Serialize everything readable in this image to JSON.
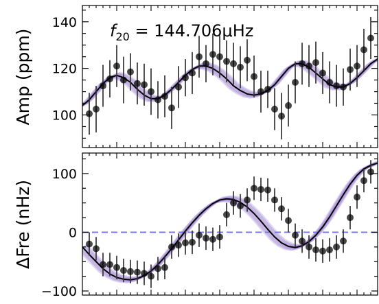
{
  "chart_data": [
    {
      "type": "scatter",
      "ylabel": "Amp (ppm)",
      "annotation": {
        "prefix": "f",
        "subscript": "20",
        "text": " = 144.706μHz"
      },
      "xlim": [
        0,
        43
      ],
      "ylim": [
        86,
        147
      ],
      "yticks": [
        100,
        120,
        140
      ],
      "colors": {
        "points": "#000000",
        "model": "#000000",
        "band": "#9b7fd0"
      },
      "points": {
        "x": [
          1,
          2,
          3,
          4,
          5,
          6,
          7,
          8,
          9,
          10,
          11,
          12,
          13,
          14,
          15,
          16,
          17,
          18,
          19,
          20,
          21,
          22,
          23,
          24,
          25,
          26,
          27,
          28,
          29,
          30,
          31,
          32,
          33,
          34,
          35,
          36,
          37,
          38,
          39,
          40,
          41,
          42
        ],
        "y": [
          100.5,
          102.5,
          112.5,
          115.5,
          121,
          115,
          118.5,
          113.5,
          113,
          110,
          106.5,
          108,
          103,
          112,
          116,
          118,
          125,
          122,
          126,
          125,
          123,
          122,
          120.5,
          123.5,
          116.5,
          110,
          111,
          102.5,
          99.5,
          104,
          114,
          122,
          121,
          122.5,
          118,
          114,
          112.5,
          112,
          119.5,
          121,
          128,
          133
        ],
        "err": [
          9,
          10,
          9,
          8,
          9,
          10,
          8,
          9,
          9,
          10,
          8,
          9,
          9,
          9,
          8,
          9,
          9,
          8,
          9,
          9,
          9,
          9,
          9,
          9,
          9,
          9,
          8,
          9,
          10,
          9,
          9,
          9,
          9,
          9,
          9,
          9,
          9,
          8,
          9,
          9,
          9,
          9
        ]
      },
      "model": {
        "x": [
          0,
          1,
          2,
          3,
          4,
          5,
          6,
          7,
          8,
          9,
          10,
          11,
          12,
          13,
          14,
          15,
          16,
          17,
          18,
          19,
          20,
          21,
          22,
          23,
          24,
          25,
          26,
          27,
          28,
          29,
          30,
          31,
          32,
          33,
          34,
          35,
          36,
          37,
          38,
          39,
          40,
          41,
          42,
          43
        ],
        "y": [
          104,
          106.5,
          110,
          113.5,
          116,
          117,
          116,
          114,
          111,
          108.5,
          107,
          107,
          108.5,
          111,
          114,
          117,
          119.5,
          121,
          121,
          120,
          118,
          115.5,
          112.5,
          110.5,
          109,
          108.5,
          109,
          110.5,
          113,
          116.5,
          120,
          122,
          122,
          120.5,
          118,
          115.5,
          113,
          112,
          112,
          113.5,
          116,
          119,
          122,
          124
        ]
      }
    },
    {
      "type": "scatter",
      "ylabel": "ΔFre (nHz)",
      "xlim": [
        0,
        43
      ],
      "ylim": [
        -107,
        135
      ],
      "yticks": [
        -100,
        0,
        100
      ],
      "reference_line": {
        "y": 0,
        "color": "#7b76e8",
        "style": "dashed"
      },
      "colors": {
        "points": "#000000",
        "model": "#000000",
        "band": "#9b7fd0"
      },
      "points": {
        "x": [
          1,
          2,
          3,
          4,
          5,
          6,
          7,
          8,
          9,
          10,
          11,
          12,
          13,
          14,
          15,
          16,
          17,
          18,
          19,
          20,
          21,
          22,
          23,
          24,
          25,
          26,
          27,
          28,
          29,
          30,
          31,
          32,
          33,
          34,
          35,
          36,
          37,
          38,
          39,
          40,
          41,
          42
        ],
        "y": [
          -20,
          -28,
          -55,
          -55,
          -60,
          -65,
          -67,
          -68,
          -70,
          -75,
          -62,
          -60,
          -25,
          -22,
          -18,
          -17,
          -5,
          -10,
          -12,
          -8,
          30,
          50,
          45,
          55,
          75,
          73,
          72,
          55,
          40,
          20,
          -5,
          -15,
          -25,
          -30,
          -32,
          -30,
          -25,
          -15,
          25,
          60,
          88,
          103
        ],
        "err": [
          20,
          20,
          20,
          20,
          20,
          20,
          20,
          20,
          20,
          20,
          20,
          20,
          20,
          20,
          20,
          20,
          20,
          20,
          20,
          20,
          20,
          20,
          20,
          20,
          20,
          20,
          20,
          20,
          20,
          20,
          20,
          20,
          20,
          20,
          20,
          20,
          20,
          20,
          20,
          20,
          20,
          20
        ]
      },
      "model": {
        "x": [
          0,
          1,
          2,
          3,
          4,
          5,
          6,
          7,
          8,
          9,
          10,
          11,
          12,
          13,
          14,
          15,
          16,
          17,
          18,
          19,
          20,
          21,
          22,
          23,
          24,
          25,
          26,
          27,
          28,
          29,
          30,
          31,
          32,
          33,
          34,
          35,
          36,
          37,
          38,
          39,
          40,
          41,
          42,
          43
        ],
        "y": [
          -25,
          -38,
          -50,
          -62,
          -71,
          -77,
          -80,
          -81,
          -79,
          -74,
          -66,
          -55,
          -42,
          -28,
          -13,
          2,
          16,
          29,
          40,
          49,
          55,
          57,
          56,
          51,
          43,
          32,
          19,
          5,
          -8,
          -18,
          -24,
          -26,
          -23,
          -16,
          -5,
          9,
          26,
          45,
          64,
          82,
          97,
          108,
          114,
          118
        ]
      }
    }
  ]
}
